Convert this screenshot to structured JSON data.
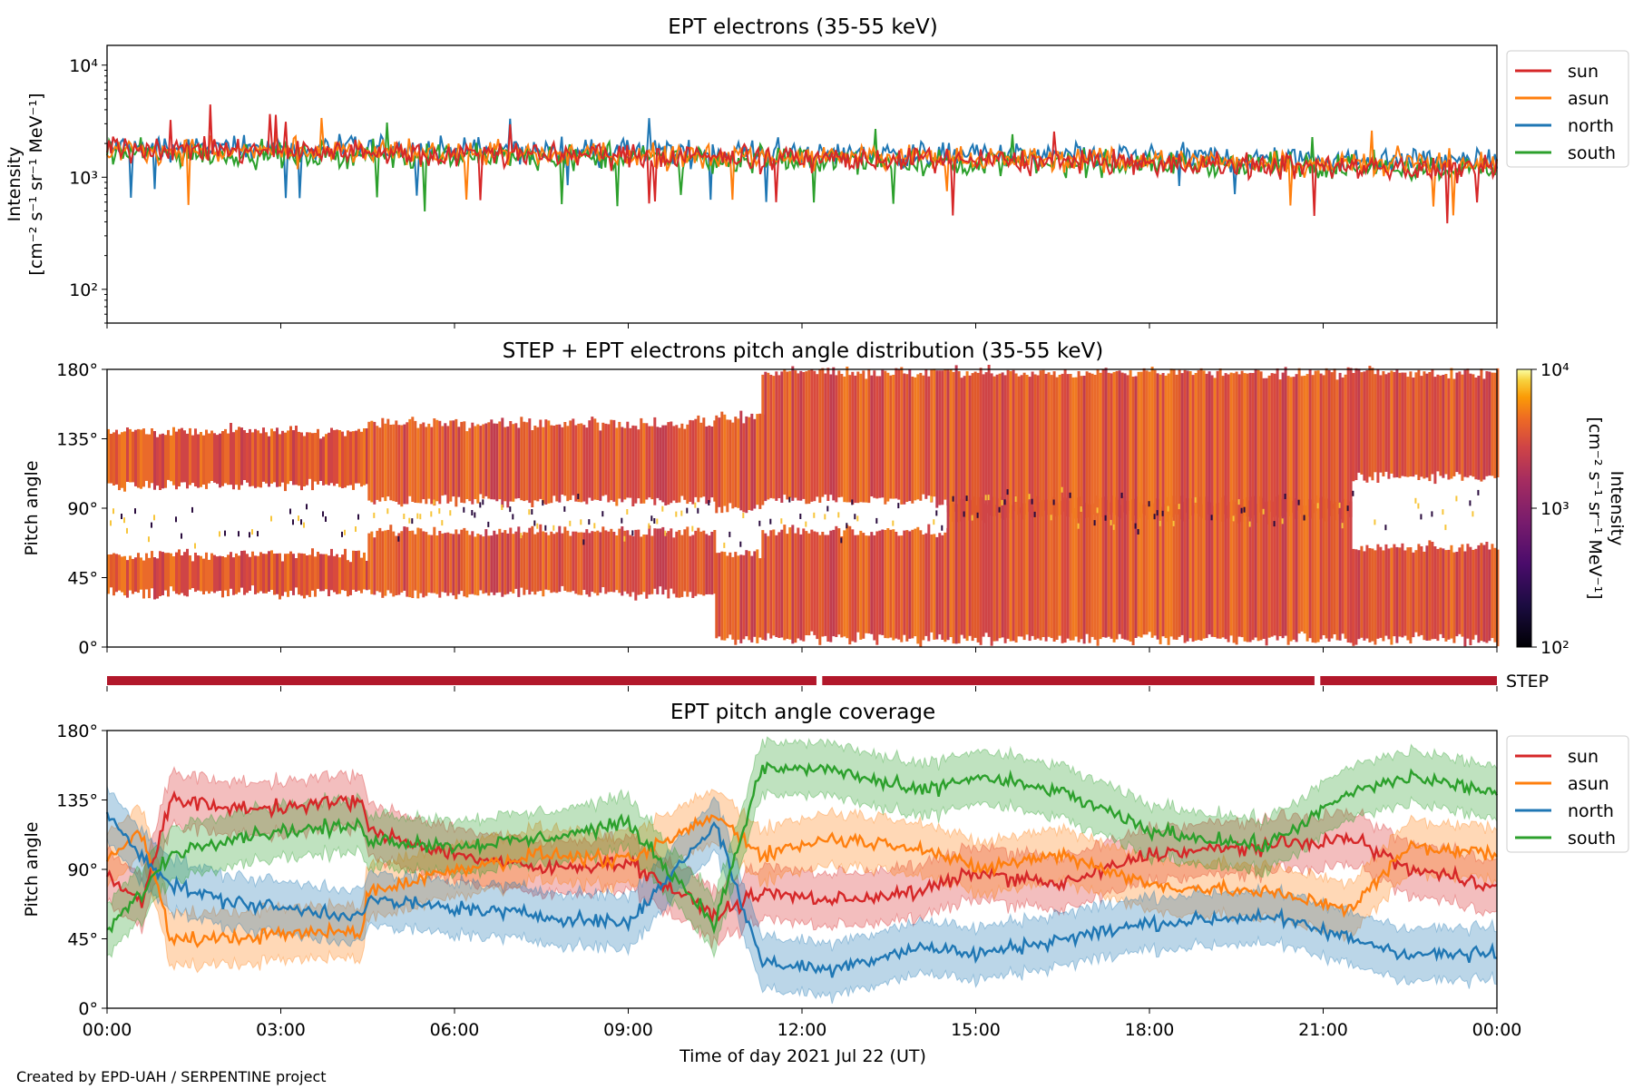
{
  "footer": "Created by EPD-UAH / SERPENTINE project",
  "colors": {
    "sun": "#d62728",
    "asun": "#ff7f0e",
    "north": "#1f77b4",
    "south": "#2ca02c",
    "step": "#b2182b"
  },
  "chart_data": [
    {
      "type": "line",
      "title": "EPT electrons (35-55 keV)",
      "ylabel": "Intensity",
      "ylabel_unit": "[cm⁻² s⁻¹ sr⁻¹ MeV⁻¹]",
      "yscale": "log",
      "ylim": [
        50,
        15000
      ],
      "yticks": [
        "10²",
        "10³",
        "10⁴"
      ],
      "xlim": [
        "00:00",
        "24:00"
      ],
      "legend_position": "right",
      "series": [
        {
          "name": "sun",
          "start": 1800,
          "end": 1150
        },
        {
          "name": "asun",
          "start": 1750,
          "end": 1300
        },
        {
          "name": "north",
          "start": 1850,
          "end": 1400
        },
        {
          "name": "south",
          "start": 1650,
          "end": 1200
        }
      ]
    },
    {
      "type": "heatmap",
      "title": "STEP + EPT electrons pitch angle distribution (35-55 keV)",
      "ylabel": "Pitch angle",
      "yticks": [
        "0°",
        "45°",
        "90°",
        "135°",
        "180°"
      ],
      "ylim": [
        0,
        180
      ],
      "colorbar": {
        "label": "Intensity",
        "unit": "[cm⁻² s⁻¹ sr⁻¹ MeV⁻¹]",
        "scale": "log",
        "range": [
          100,
          10000
        ],
        "ticks": [
          "10²",
          "10³",
          "10⁴"
        ]
      },
      "coverage_bands": [
        {
          "from": 0,
          "to": 4.5,
          "low": [
            35,
            60
          ],
          "high": [
            105,
            140
          ]
        },
        {
          "from": 4.5,
          "to": 10.5,
          "low": [
            35,
            75
          ],
          "high": [
            95,
            145
          ]
        },
        {
          "from": 10.5,
          "to": 11.3,
          "low": [
            5,
            60
          ],
          "high": [
            90,
            150
          ]
        },
        {
          "from": 11.3,
          "to": 14.5,
          "low": [
            5,
            75
          ],
          "high": [
            95,
            178
          ]
        },
        {
          "from": 14.5,
          "to": 21.5,
          "low": [
            5,
            95
          ],
          "high": [
            85,
            178
          ]
        },
        {
          "from": 21.5,
          "to": 24,
          "low": [
            5,
            65
          ],
          "high": [
            110,
            178
          ]
        }
      ]
    },
    {
      "type": "bar",
      "label": "STEP",
      "segments": [
        {
          "from": 0,
          "to": 12.25
        },
        {
          "from": 12.35,
          "to": 20.85
        },
        {
          "from": 20.95,
          "to": 24
        }
      ]
    },
    {
      "type": "line",
      "title": "EPT pitch angle coverage",
      "ylabel": "Pitch angle",
      "xlabel": "Time of day 2021 Jul 22 (UT)",
      "xticks": [
        "00:00",
        "03:00",
        "06:00",
        "09:00",
        "12:00",
        "15:00",
        "18:00",
        "21:00",
        "00:00"
      ],
      "yticks": [
        "0°",
        "45°",
        "90°",
        "135°",
        "180°"
      ],
      "ylim": [
        0,
        180
      ],
      "legend_position": "right",
      "band_halfwidth": 17,
      "series": [
        {
          "name": "sun",
          "x": [
            0,
            0.6,
            1.1,
            2.0,
            3.0,
            4.4,
            4.5,
            6.0,
            7.5,
            9.0,
            10.5,
            11.3,
            12.5,
            14.0,
            15.0,
            16.5,
            18.0,
            20.0,
            21.5,
            22.5,
            24.0
          ],
          "y": [
            85,
            70,
            135,
            130,
            130,
            135,
            115,
            100,
            90,
            95,
            60,
            75,
            70,
            75,
            88,
            80,
            100,
            105,
            110,
            90,
            80
          ]
        },
        {
          "name": "asun",
          "x": [
            0,
            0.6,
            1.1,
            2.0,
            3.0,
            4.4,
            4.5,
            6.0,
            7.5,
            9.0,
            10.5,
            11.3,
            12.5,
            14.0,
            15.0,
            16.5,
            18.0,
            20.0,
            21.5,
            22.5,
            24.0
          ],
          "y": [
            95,
            115,
            45,
            45,
            48,
            50,
            75,
            90,
            100,
            95,
            125,
            100,
            110,
            105,
            90,
            100,
            80,
            75,
            65,
            105,
            100
          ]
        },
        {
          "name": "north",
          "x": [
            0,
            0.6,
            1.1,
            2.0,
            3.0,
            4.4,
            4.5,
            6.0,
            7.5,
            9.0,
            10.5,
            11.3,
            12.5,
            14.0,
            15.0,
            16.5,
            18.0,
            20.0,
            21.5,
            22.5,
            24.0
          ],
          "y": [
            125,
            100,
            80,
            70,
            65,
            60,
            70,
            65,
            60,
            55,
            120,
            30,
            25,
            40,
            35,
            45,
            55,
            60,
            45,
            35,
            35
          ]
        },
        {
          "name": "south",
          "x": [
            0,
            0.6,
            1.1,
            2.0,
            3.0,
            4.4,
            4.5,
            6.0,
            7.5,
            9.0,
            10.5,
            11.3,
            12.5,
            14.0,
            15.0,
            16.5,
            18.0,
            20.0,
            21.5,
            22.5,
            24.0
          ],
          "y": [
            50,
            75,
            100,
            110,
            115,
            118,
            110,
            105,
            110,
            120,
            55,
            155,
            155,
            140,
            150,
            140,
            115,
            105,
            140,
            150,
            140
          ]
        }
      ]
    }
  ]
}
